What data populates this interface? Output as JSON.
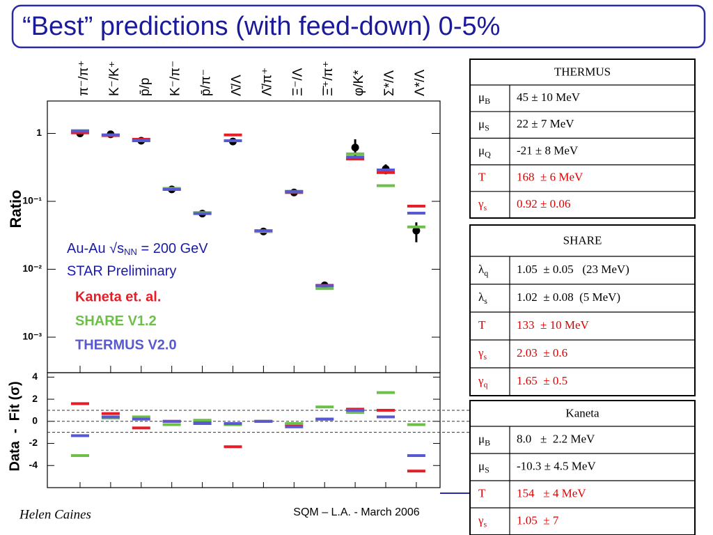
{
  "title": "“Best” predictions (with feed-down) 0-5%",
  "chart_data": [
    {
      "type": "scatter",
      "log_scale": true,
      "ylabel": "Ratio",
      "categories": [
        "π⁻/π⁺",
        "K⁻/K⁺",
        "p̄/p",
        "K⁻/π⁻",
        "p̄/π⁻",
        "Λ̄/Λ",
        "Λ̄/π⁺",
        "Ξ⁻/Λ",
        "Ξ̄⁺/π⁺",
        "φ/K*",
        "Σ*/Λ",
        "Λ*/Λ"
      ],
      "ylim": [
        0.0003,
        3
      ],
      "yticks": [
        1,
        {
          "value": 0.1,
          "label": "10⁻¹"
        },
        {
          "value": 0.01,
          "label": "10⁻²"
        },
        {
          "value": 0.001,
          "label": "10⁻³"
        }
      ],
      "series": [
        {
          "marker": "circle",
          "color": "#000000",
          "values": [
            1.0,
            0.97,
            0.78,
            0.15,
            0.066,
            0.76,
            0.036,
            0.135,
            0.0058,
            0.62,
            0.3,
            0.037
          ],
          "errors": [
            null,
            null,
            null,
            null,
            null,
            null,
            null,
            null,
            null,
            0.2,
            0.05,
            0.012
          ]
        },
        {
          "marker": "dash",
          "name": "Kaneta et. al.",
          "color": "#e41e26",
          "values": [
            1.02,
            0.93,
            0.82,
            0.15,
            0.068,
            0.95,
            0.036,
            0.135,
            0.0058,
            0.42,
            0.265,
            0.085
          ]
        },
        {
          "marker": "dash",
          "name": "SHARE V1.2",
          "color": "#6cc04a",
          "values": [
            1.1,
            0.95,
            0.78,
            0.155,
            0.068,
            0.78,
            0.036,
            0.14,
            0.0052,
            0.5,
            0.17,
            0.042
          ]
        },
        {
          "marker": "dash",
          "name": "THERMUS V2.0",
          "color": "#5858d0",
          "values": [
            1.08,
            0.95,
            0.78,
            0.15,
            0.066,
            0.78,
            0.037,
            0.14,
            0.0057,
            0.45,
            0.29,
            0.067
          ]
        }
      ],
      "annotations": [
        "Au-Au √s",
        "NN",
        " = 200 GeV",
        "STAR Preliminary"
      ]
    },
    {
      "type": "scatter",
      "ylabel": "Data  -  Fit (σ)",
      "ylim": [
        -6,
        4.4
      ],
      "yticks": [
        -4,
        -2,
        0,
        2,
        4
      ],
      "reference_lines": [
        -1,
        0,
        1
      ],
      "series": [
        {
          "marker": "dash",
          "color": "#e41e26",
          "values": [
            1.6,
            0.7,
            -0.6,
            0,
            0,
            -2.3,
            0,
            -0.3,
            0.2,
            1.1,
            1.0,
            -4.5
          ]
        },
        {
          "marker": "dash",
          "color": "#6cc04a",
          "values": [
            -3.1,
            0.3,
            0.4,
            -0.3,
            0.1,
            -0.3,
            0,
            -0.2,
            1.3,
            0.8,
            2.6,
            -0.3
          ]
        },
        {
          "marker": "dash",
          "color": "#5858d0",
          "values": [
            -1.3,
            0.4,
            0.2,
            0,
            -0.2,
            -0.2,
            0,
            -0.5,
            0.2,
            1.0,
            0.4,
            -3.1
          ]
        }
      ]
    }
  ],
  "tables": [
    {
      "title": "THERMUS",
      "rows": [
        {
          "symbol": "μ",
          "sub": "B",
          "value": "45 ± 10 MeV"
        },
        {
          "symbol": "μ",
          "sub": "S",
          "value": "22 ± 7 MeV"
        },
        {
          "symbol": "μ",
          "sub": "Q",
          "value": "-21 ± 8 MeV"
        },
        {
          "symbol": "T",
          "value": "168  ± 6 MeV",
          "color": "#e00000"
        },
        {
          "symbol": "γ",
          "sub": "s",
          "value": "0.92 ± 0.06",
          "color": "#e00000"
        }
      ]
    },
    {
      "title": "SHARE",
      "rows": [
        {
          "symbol": "λ",
          "sub": "q",
          "value": "1.05  ± 0.05   (23 MeV)"
        },
        {
          "symbol": "λ",
          "sub": "s",
          "value": "1.02  ± 0.08  (5 MeV)"
        },
        {
          "symbol": "T",
          "value": "133  ± 10 MeV",
          "color": "#e00000"
        },
        {
          "symbol": "γ",
          "sub": "s",
          "value": "2.03  ± 0.6",
          "color": "#e00000"
        },
        {
          "symbol": "γ",
          "sub": "q",
          "value": "1.65  ± 0.5",
          "color": "#e00000"
        }
      ]
    },
    {
      "title": "Kaneta",
      "rows": [
        {
          "symbol": "μ",
          "sub": "B",
          "value": "8.0   ±  2.2 MeV"
        },
        {
          "symbol": "μ",
          "sub": "S",
          "value": "-10.3 ± 4.5 MeV"
        },
        {
          "symbol": "T",
          "value": "154   ± 4 MeV",
          "color": "#e00000"
        },
        {
          "symbol": "γ",
          "sub": "s",
          "value": "1.05  ± 7",
          "color": "#e00000"
        }
      ]
    }
  ],
  "footer": {
    "author": "Helen Caines",
    "event": "SQM  – L.A. - March 2006"
  }
}
